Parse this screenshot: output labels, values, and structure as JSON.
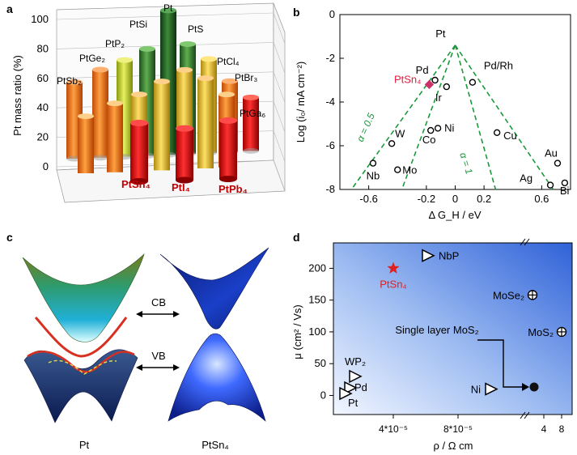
{
  "panels": {
    "a": "a",
    "b": "b",
    "c": "c",
    "d": "d"
  },
  "chart_data": [
    {
      "panel": "a",
      "type": "bar",
      "ylabel": "Pt mass ratio (%)",
      "yticks": [
        "0",
        "20",
        "40",
        "60",
        "80",
        "100"
      ],
      "ylim": [
        0,
        100
      ],
      "rows": [
        {
          "categories": [
            "PtSb₂",
            "PtGe₂",
            "PtP₂",
            "PtSi",
            "Pt",
            "PtS",
            "PtCl₄",
            "PtBr₃",
            "PtGa₆"
          ],
          "values": [
            53,
            61,
            67,
            74,
            100,
            76,
            65,
            49,
            37
          ]
        },
        {
          "categories": [
            "",
            "",
            "",
            "",
            "",
            "",
            "",
            "",
            ""
          ],
          "values": [
            0,
            0,
            0,
            0,
            0,
            0,
            0,
            0,
            0
          ]
        },
        {
          "categories": [
            "PtSn₄",
            "PtI₄",
            "PtPb₄"
          ],
          "values": [
            44,
            39,
            44
          ]
        }
      ],
      "front_labels": [
        "PtSn₄",
        "PtI₄",
        "PtPb₄"
      ],
      "colors": {
        "highlight": "#cc0000",
        "warm": "#f07a18",
        "gold": "#e6c02a",
        "green": "#2f7a2f"
      }
    },
    {
      "panel": "b",
      "type": "scatter",
      "xlabel": "Δ G_H / eV",
      "ylabel": "Log (i₀/ mA cm⁻²)",
      "xticks": [
        "-0.6",
        "-0.2",
        "0",
        "0.2",
        "0.6"
      ],
      "yticks": [
        "0",
        "-2",
        "-4",
        "-6",
        "-8"
      ],
      "xlim": [
        -0.8,
        0.8
      ],
      "ylim": [
        -8,
        0
      ],
      "points": [
        {
          "label": "Pt",
          "x": 0.0,
          "y": -1.4
        },
        {
          "label": "Pd",
          "x": -0.14,
          "y": -3.0
        },
        {
          "label": "Ir",
          "x": -0.06,
          "y": -3.3
        },
        {
          "label": "Pd/Rh",
          "x": 0.12,
          "y": -3.1
        },
        {
          "label": "Ni",
          "x": -0.12,
          "y": -5.2
        },
        {
          "label": "Co",
          "x": -0.17,
          "y": -5.3
        },
        {
          "label": "Cu",
          "x": 0.29,
          "y": -5.4
        },
        {
          "label": "W",
          "x": -0.44,
          "y": -5.9
        },
        {
          "label": "Nb",
          "x": -0.57,
          "y": -6.8
        },
        {
          "label": "Mo",
          "x": -0.4,
          "y": -7.1
        },
        {
          "label": "Au",
          "x": 0.71,
          "y": -6.8
        },
        {
          "label": "Bi",
          "x": 0.76,
          "y": -7.7
        },
        {
          "label": "Ag",
          "x": 0.66,
          "y": -7.8
        }
      ],
      "highlight": {
        "label": "PtSn₄",
        "x": -0.18,
        "y": -3.2
      },
      "lines": [
        {
          "label": "α = 0.5"
        },
        {
          "label": "α = 1"
        }
      ]
    },
    {
      "panel": "d",
      "type": "scatter",
      "xlabel": "ρ / Ω cm",
      "ylabel": "μ (cm² / Vs)",
      "xticks": [
        "4*10⁻⁵",
        "8*10⁻⁵",
        "4",
        "8"
      ],
      "yticks": [
        "0",
        "50",
        "100",
        "150",
        "200"
      ],
      "ylim": [
        -30,
        240
      ],
      "points": [
        {
          "label": "PtSn₄",
          "marker": "star",
          "y": 200
        },
        {
          "label": "NbP",
          "marker": "triangle",
          "y": 220
        },
        {
          "label": "MoSe₂",
          "marker": "circle-plus",
          "y": 158
        },
        {
          "label": "MoS₂",
          "marker": "circle-plus",
          "y": 100
        },
        {
          "label": "WP₂",
          "marker": "triangle",
          "y": 30
        },
        {
          "label": "Pd",
          "marker": "triangle",
          "y": 12
        },
        {
          "label": "Pt",
          "marker": "triangle",
          "y": 3
        },
        {
          "label": "Ni",
          "marker": "triangle",
          "y": 10
        },
        {
          "label": "Single layer MoS₂",
          "marker": "dot",
          "y": 20
        }
      ]
    }
  ],
  "panel_c": {
    "labels": {
      "cb": "CB",
      "vb": "VB",
      "left": "Pt",
      "right": "PtSn₄"
    }
  }
}
